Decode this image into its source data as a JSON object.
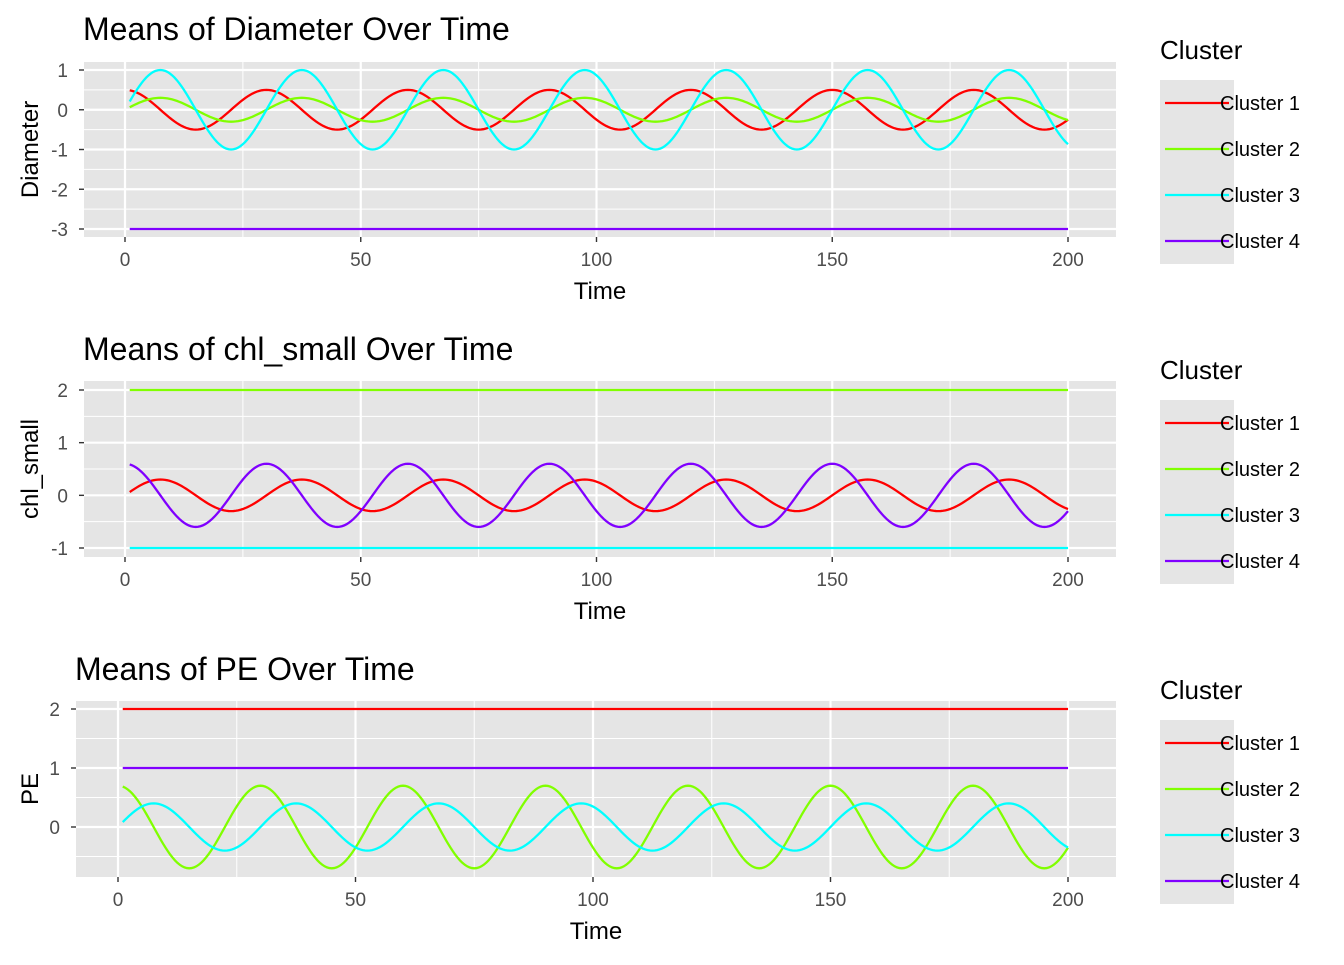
{
  "legend_title": "Cluster",
  "colors": {
    "cluster1": "#FF0000",
    "cluster2": "#80FF00",
    "cluster3": "#00FFFF",
    "cluster4": "#8000FF",
    "panel_background": "#E5E5E5",
    "gridline": "#FFFFFF",
    "tick": "#333333",
    "tick_text": "#4D4D4D"
  },
  "chart_data": [
    {
      "type": "line",
      "title": "Means of Diameter Over Time",
      "xlabel": "Time",
      "ylabel": "Diameter",
      "xlim": [
        1,
        200
      ],
      "ylim": [
        -3,
        1
      ],
      "xticks": [
        "0",
        "50",
        "100",
        "150",
        "200"
      ],
      "yticks": [
        "1",
        "0",
        "-1",
        "-2",
        "-3"
      ],
      "grid": true,
      "legend_position": "right",
      "legend_title": "Cluster",
      "series": [
        {
          "name": "Cluster 1",
          "color": "#FF0000",
          "kind": "sine",
          "amplitude": 0.5,
          "period": 30,
          "peak_time": 30,
          "offset": 0
        },
        {
          "name": "Cluster 2",
          "color": "#80FF00",
          "kind": "sine",
          "amplitude": 0.3,
          "period": 30,
          "peak_time": 37.5,
          "offset": 0
        },
        {
          "name": "Cluster 3",
          "color": "#00FFFF",
          "kind": "sine",
          "amplitude": 1.0,
          "period": 30,
          "peak_time": 37.5,
          "offset": 0
        },
        {
          "name": "Cluster 4",
          "color": "#8000FF",
          "kind": "constant",
          "value": -3
        }
      ]
    },
    {
      "type": "line",
      "title": "Means of chl_small Over Time",
      "xlabel": "Time",
      "ylabel": "chl_small",
      "xlim": [
        1,
        200
      ],
      "ylim": [
        -1,
        2
      ],
      "xticks": [
        "0",
        "50",
        "100",
        "150",
        "200"
      ],
      "yticks": [
        "2",
        "1",
        "0",
        "-1"
      ],
      "grid": true,
      "legend_position": "right",
      "legend_title": "Cluster",
      "series": [
        {
          "name": "Cluster 1",
          "color": "#FF0000",
          "kind": "sine",
          "amplitude": 0.3,
          "period": 30,
          "peak_time": 37.5,
          "offset": 0
        },
        {
          "name": "Cluster 2",
          "color": "#80FF00",
          "kind": "constant",
          "value": 2
        },
        {
          "name": "Cluster 3",
          "color": "#00FFFF",
          "kind": "constant",
          "value": -1
        },
        {
          "name": "Cluster 4",
          "color": "#8000FF",
          "kind": "sine",
          "amplitude": 0.6,
          "period": 30,
          "peak_time": 30,
          "offset": 0
        }
      ]
    },
    {
      "type": "line",
      "title": "Means of PE Over Time",
      "xlabel": "Time",
      "ylabel": "PE",
      "xlim": [
        1,
        200
      ],
      "ylim": [
        -0.7,
        2
      ],
      "xticks": [
        "0",
        "50",
        "100",
        "150",
        "200"
      ],
      "yticks": [
        "2",
        "1",
        "0"
      ],
      "grid": true,
      "legend_position": "right",
      "legend_title": "Cluster",
      "series": [
        {
          "name": "Cluster 1",
          "color": "#FF0000",
          "kind": "constant",
          "value": 2
        },
        {
          "name": "Cluster 2",
          "color": "#80FF00",
          "kind": "sine",
          "amplitude": 0.7,
          "period": 30,
          "peak_time": 30,
          "offset": 0
        },
        {
          "name": "Cluster 3",
          "color": "#00FFFF",
          "kind": "sine",
          "amplitude": 0.4,
          "period": 30,
          "peak_time": 37.5,
          "offset": 0
        },
        {
          "name": "Cluster 4",
          "color": "#8000FF",
          "kind": "constant",
          "value": 1
        }
      ]
    }
  ]
}
